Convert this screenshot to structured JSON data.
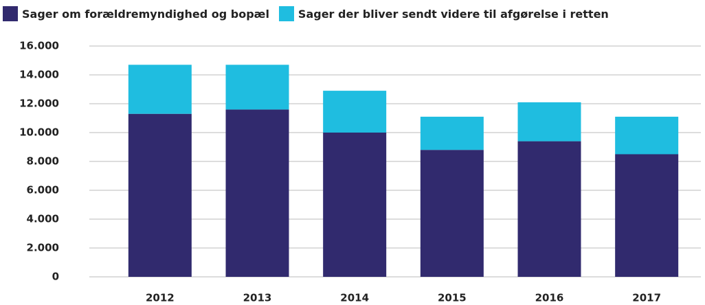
{
  "chart_data": {
    "type": "stacked_bar",
    "categories": [
      "2012",
      "2013",
      "2014",
      "2015",
      "2016",
      "2017"
    ],
    "series": [
      {
        "name": "Sager om forældremyndighed og bopæl",
        "color": "#312a6e",
        "values": [
          11300,
          11600,
          10000,
          8800,
          9400,
          8500
        ]
      },
      {
        "name": "Sager der bliver sendt videre til afgørelse i retten",
        "color": "#1fbde0",
        "values": [
          3400,
          3100,
          2900,
          2300,
          2700,
          2600
        ]
      }
    ],
    "ylim": [
      0,
      16000
    ],
    "yticks": [
      0,
      {
        "value": 2000,
        "label": "2.000"
      },
      {
        "value": 4000,
        "label": "4.000"
      },
      {
        "value": 6000,
        "label": "6.000"
      },
      {
        "value": 8000,
        "label": "8.000"
      },
      {
        "value": 10000,
        "label": "10.000"
      },
      {
        "value": 12000,
        "label": "12.000"
      },
      {
        "value": 14000,
        "label": "14.000"
      },
      {
        "value": 16000,
        "label": "16.000"
      }
    ],
    "grid": true
  }
}
